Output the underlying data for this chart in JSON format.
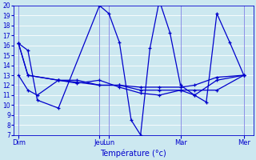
{
  "xlabel": "Température (°c)",
  "background_color": "#cce8f0",
  "grid_color": "#ffffff",
  "line_color": "#0000cc",
  "ylim": [
    7,
    20
  ],
  "yticks": [
    7,
    8,
    9,
    10,
    11,
    12,
    13,
    14,
    15,
    16,
    17,
    18,
    19,
    20
  ],
  "xlim": [
    0,
    1
  ],
  "day_positions": [
    0.0,
    0.345,
    0.385,
    0.69,
    0.96
  ],
  "day_labels": [
    "Dim",
    "Jeu",
    "Lun",
    "Mar",
    "Mer"
  ],
  "series_zigzag_x": [
    0.0,
    0.04,
    0.08,
    0.17,
    0.345,
    0.385,
    0.43,
    0.48,
    0.52,
    0.56,
    0.6,
    0.645,
    0.69,
    0.75,
    0.8,
    0.845,
    0.9,
    0.96
  ],
  "series_zigzag_y": [
    16.2,
    15.5,
    10.5,
    9.7,
    20.0,
    19.2,
    16.3,
    8.5,
    7.0,
    15.7,
    20.5,
    17.3,
    12.0,
    11.0,
    10.3,
    19.2,
    16.3,
    13.0
  ],
  "flat1_x": [
    0.0,
    0.04,
    0.08,
    0.17,
    0.25,
    0.345,
    0.43,
    0.52,
    0.6,
    0.69,
    0.75,
    0.845,
    0.96
  ],
  "flat1_y": [
    13.0,
    11.5,
    11.0,
    12.5,
    12.2,
    12.5,
    11.8,
    11.2,
    11.0,
    11.5,
    11.0,
    12.5,
    13.0
  ],
  "flat2_x": [
    0.0,
    0.04,
    0.17,
    0.25,
    0.345,
    0.43,
    0.52,
    0.6,
    0.69,
    0.75,
    0.845,
    0.96
  ],
  "flat2_y": [
    16.2,
    13.0,
    12.5,
    12.3,
    12.0,
    12.0,
    11.5,
    11.5,
    11.5,
    11.5,
    11.5,
    13.0
  ],
  "flat3_x": [
    0.0,
    0.04,
    0.17,
    0.25,
    0.345,
    0.43,
    0.52,
    0.6,
    0.69,
    0.75,
    0.845,
    0.96
  ],
  "flat3_y": [
    16.2,
    13.0,
    12.5,
    12.5,
    12.0,
    12.0,
    11.8,
    11.8,
    11.8,
    12.0,
    12.8,
    13.0
  ]
}
